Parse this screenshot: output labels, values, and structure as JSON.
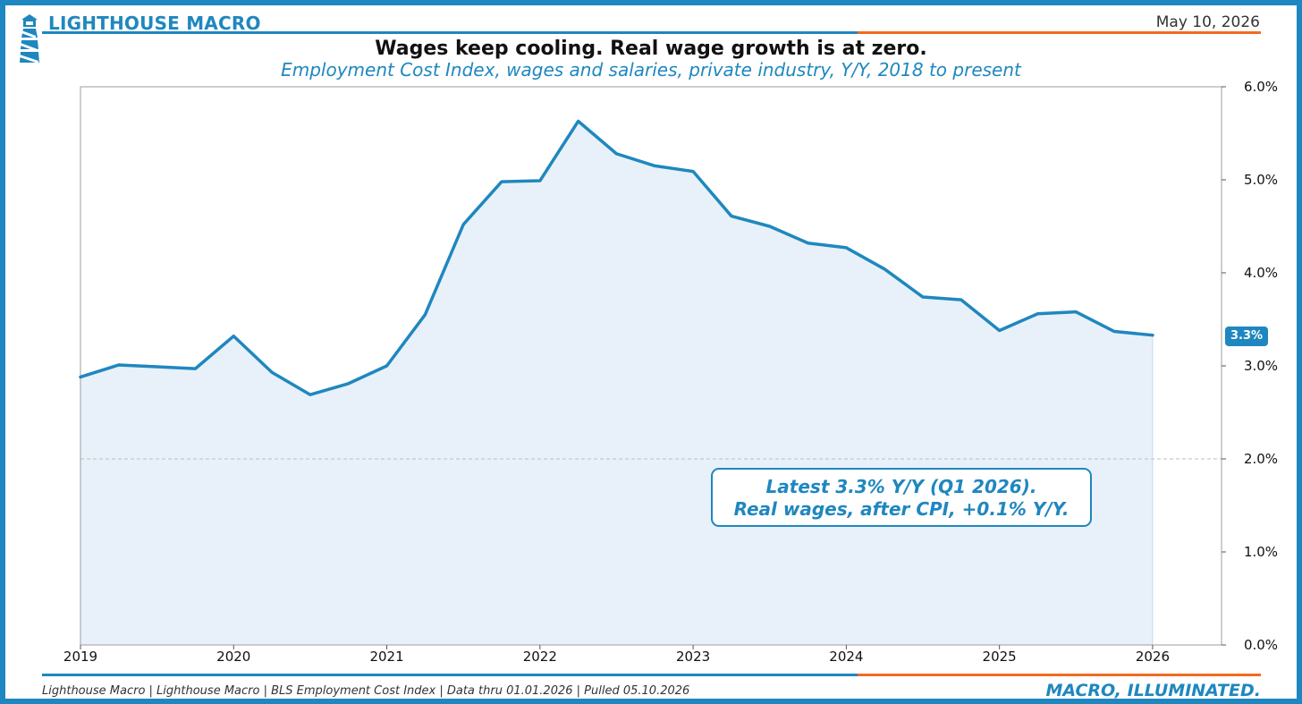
{
  "header": {
    "brand": "LIGHTHOUSE MACRO",
    "date": "May 10, 2026"
  },
  "colors": {
    "brand_blue": "#1f87bf",
    "accent_orange": "#f26b21",
    "fill": "#e8f1f9"
  },
  "chart_data": {
    "type": "area",
    "title": "Wages keep cooling. Real wage growth is at zero.",
    "subtitle": "Employment Cost Index, wages and salaries, private industry, Y/Y, 2018 to present",
    "xlabel": "",
    "ylabel": "",
    "x_ticks": [
      "2019",
      "2020",
      "2021",
      "2022",
      "2023",
      "2024",
      "2025",
      "2026"
    ],
    "y_ticks": [
      "0.0%",
      "1.0%",
      "2.0%",
      "3.0%",
      "4.0%",
      "5.0%",
      "6.0%"
    ],
    "ylim": [
      0,
      6
    ],
    "xlim": [
      2019.0,
      2026.45
    ],
    "y_axis_side": "right",
    "reference_line": 2.0,
    "grid": false,
    "series": [
      {
        "x": [
          2019.0,
          2019.25,
          2019.5,
          2019.75,
          2020.0,
          2020.25,
          2020.5,
          2020.75,
          2021.0,
          2021.25,
          2021.5,
          2021.75,
          2022.0,
          2022.25,
          2022.5,
          2022.75,
          2023.0,
          2023.25,
          2023.5,
          2023.75,
          2024.0,
          2024.25,
          2024.5,
          2024.75,
          2025.0,
          2025.25,
          2025.5,
          2025.75,
          2026.0
        ],
        "values": [
          2.88,
          3.01,
          2.99,
          2.97,
          3.32,
          2.93,
          2.69,
          2.81,
          3.0,
          3.55,
          4.52,
          4.98,
          4.99,
          5.63,
          5.28,
          5.15,
          5.09,
          4.61,
          4.5,
          4.32,
          4.27,
          4.04,
          3.74,
          3.71,
          3.38,
          3.56,
          3.58,
          3.37,
          3.33
        ]
      }
    ],
    "last_value_label": "3.3%",
    "annotation": [
      "Latest 3.3% Y/Y (Q1 2026).",
      "Real wages, after CPI, +0.1% Y/Y."
    ]
  },
  "footer": {
    "source": "Lighthouse Macro | Lighthouse Macro | BLS Employment Cost Index | Data thru 01.01.2026 | Pulled 05.10.2026",
    "tagline": "MACRO, ILLUMINATED."
  }
}
